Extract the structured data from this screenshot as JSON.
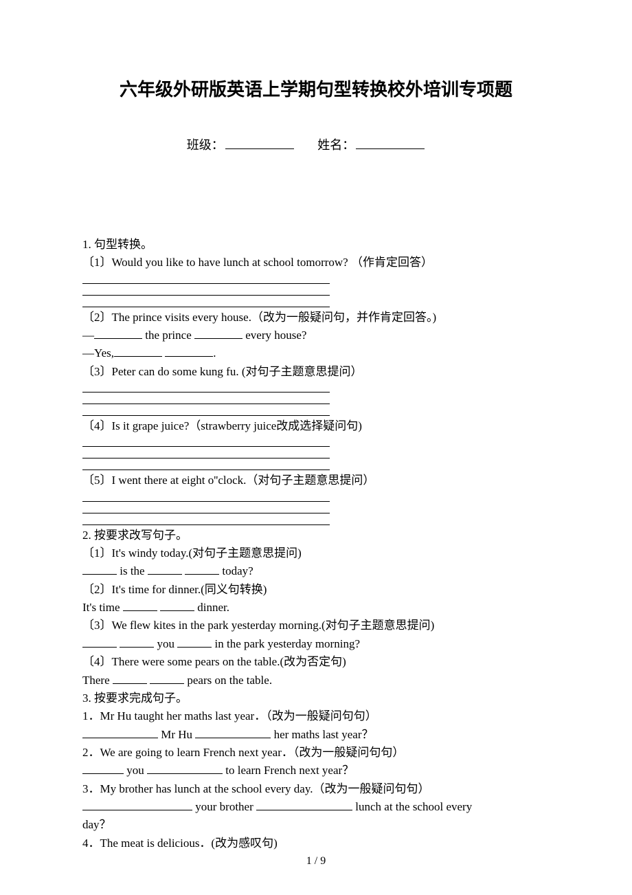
{
  "title": "六年级外研版英语上学期句型转换校外培训专项题",
  "header": {
    "class_label": "班级：",
    "name_label": "姓名："
  },
  "q1": {
    "head": "1. 句型转换。",
    "i1": "〔1〕Would you like to have lunch at school tomorrow? （作肯定回答）",
    "i2": "〔2〕The prince visits every house.（改为一般疑问句，并作肯定回答。)",
    "i2a_pre": "—",
    "i2a_mid": " the prince ",
    "i2a_end": " every house?",
    "i2b_pre": "—Yes,",
    "i2b_end": ".",
    "i3": "〔3〕Peter can do some kung fu. (对句子主题意思提问）",
    "i4": "〔4〕Is it grape juice?（strawberry juice改成选择疑问句)",
    "i5": "〔5〕I went there at eight o''clock.（对句子主题意思提问）"
  },
  "q2": {
    "head": "2. 按要求改写句子。",
    "i1": "〔1〕It's windy today.(对句子主题意思提问)",
    "i1a_mid1": " is the ",
    "i1a_end": " today?",
    "i2": "〔2〕It's time for dinner.(同义句转换)",
    "i2a_pre": "It's time ",
    "i2a_end": " dinner.",
    "i3": "〔3〕We flew kites in the park yesterday morning.(对句子主题意思提问)",
    "i3a_mid": " you ",
    "i3a_end": " in the park yesterday morning?",
    "i4": "〔4〕There were some pears on the table.(改为否定句)",
    "i4a_pre": "There ",
    "i4a_end": " pears on the table."
  },
  "q3": {
    "head": "3. 按要求完成句子。",
    "i1": "1．Mr Hu taught her maths last year．（改为一般疑问句句）",
    "i1a_mid": " Mr Hu ",
    "i1a_end": " her maths last year？",
    "i2": "2．We are going to learn French next year．（改为一般疑问句句）",
    "i2a_mid": " you ",
    "i2a_end": " to learn French next year？",
    "i3": "3．My brother has lunch at the school every day.（改为一般疑问句句）",
    "i3a_mid": " your brother ",
    "i3a_end": " lunch at the school every",
    "i3a_end2": "day？",
    "i4": "4．The meat is delicious．(改为感叹句)"
  },
  "page_number": "1 / 9"
}
